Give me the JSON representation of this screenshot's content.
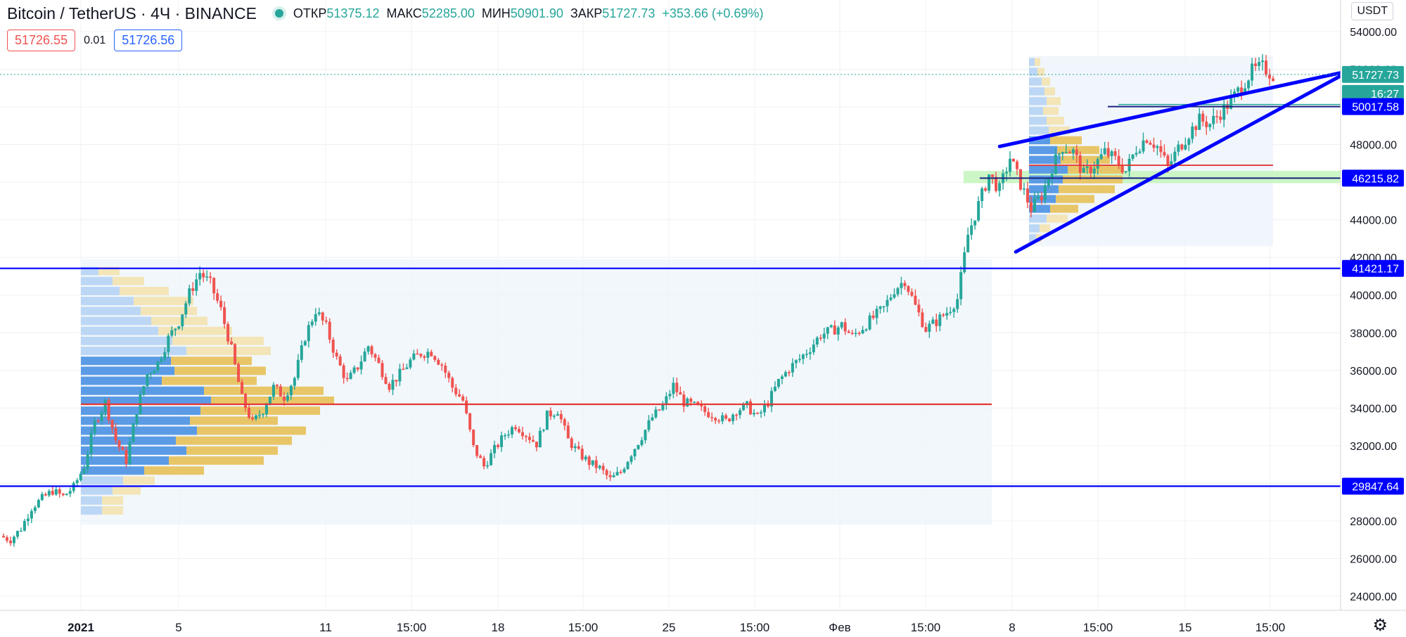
{
  "header": {
    "symbol": "Bitcoin / TetherUS · 4Ч · BINANCE",
    "ohlc": {
      "open_label": "ОТКР",
      "open": "51375.12",
      "high_label": "МАКС",
      "high": "52285.00",
      "low_label": "МИН",
      "low": "50901.90",
      "close_label": "ЗАКР",
      "close": "51727.73",
      "change": "+353.66 (+0.69%)"
    }
  },
  "trade": {
    "sell": "51726.55",
    "spread": "0.01",
    "buy": "51726.56"
  },
  "currency_button": "USDT",
  "settings_icon": "⚙",
  "colors": {
    "up": "#26a69a",
    "down": "#ef5350",
    "level": "#0000ff",
    "poc": "#e53935",
    "vol_up": "#5b9be6",
    "vol_down": "#e8c668"
  },
  "chart_data": {
    "type": "candlestick",
    "price_axis": {
      "min": 24000,
      "max": 54000,
      "ticks": [
        "24000.00",
        "26000.00",
        "28000.00",
        "30000.00",
        "32000.00",
        "34000.00",
        "36000.00",
        "38000.00",
        "40000.00",
        "42000.00",
        "44000.00",
        "46000.00",
        "48000.00",
        "50000.00",
        "52000.00",
        "54000.00"
      ]
    },
    "time_axis": {
      "labels": [
        "2021",
        "5",
        "11",
        "15:00",
        "18",
        "15:00",
        "25",
        "15:00",
        "Фев",
        "15:00",
        "8",
        "15:00",
        "15",
        "15:00"
      ]
    },
    "price_labels": [
      {
        "value": 51727.73,
        "text": "51727.73",
        "kind": "last"
      },
      {
        "text": "16:27",
        "kind": "countdown"
      },
      {
        "value": 50017.58,
        "text": "50017.58",
        "kind": "level"
      },
      {
        "value": 46215.82,
        "text": "46215.82",
        "kind": "level"
      },
      {
        "value": 41421.17,
        "text": "41421.17",
        "kind": "level"
      },
      {
        "value": 29847.64,
        "text": "29847.64",
        "kind": "level"
      }
    ],
    "horizontal_levels": [
      41421.17,
      29847.64
    ],
    "poc_levels": [
      34200,
      46900
    ],
    "close_path": [
      [
        0,
        27200
      ],
      [
        3,
        27000
      ],
      [
        6,
        27600
      ],
      [
        9,
        28700
      ],
      [
        12,
        29200
      ],
      [
        15,
        29600
      ],
      [
        18,
        29300
      ],
      [
        21,
        29800
      ],
      [
        24,
        30900
      ],
      [
        27,
        33200
      ],
      [
        30,
        34300
      ],
      [
        33,
        32300
      ],
      [
        36,
        31200
      ],
      [
        39,
        33900
      ],
      [
        42,
        35800
      ],
      [
        45,
        36400
      ],
      [
        48,
        37700
      ],
      [
        51,
        38600
      ],
      [
        54,
        40100
      ],
      [
        57,
        41200
      ],
      [
        60,
        40600
      ],
      [
        63,
        39200
      ],
      [
        66,
        37100
      ],
      [
        69,
        34500
      ],
      [
        72,
        33200
      ],
      [
        75,
        33900
      ],
      [
        78,
        35100
      ],
      [
        81,
        34600
      ],
      [
        84,
        35600
      ],
      [
        87,
        37800
      ],
      [
        90,
        39200
      ],
      [
        93,
        38300
      ],
      [
        96,
        36600
      ],
      [
        99,
        35400
      ],
      [
        102,
        36200
      ],
      [
        105,
        37300
      ],
      [
        108,
        36300
      ],
      [
        111,
        35200
      ],
      [
        114,
        35800
      ],
      [
        117,
        36500
      ],
      [
        120,
        36900
      ],
      [
        123,
        37000
      ],
      [
        126,
        36300
      ],
      [
        129,
        35100
      ],
      [
        132,
        34400
      ],
      [
        135,
        31900
      ],
      [
        138,
        30900
      ],
      [
        141,
        31800
      ],
      [
        144,
        32600
      ],
      [
        147,
        33100
      ],
      [
        150,
        32600
      ],
      [
        153,
        32100
      ],
      [
        156,
        33600
      ],
      [
        159,
        33900
      ],
      [
        162,
        32300
      ],
      [
        165,
        31600
      ],
      [
        168,
        31100
      ],
      [
        171,
        30800
      ],
      [
        174,
        30200
      ],
      [
        177,
        30600
      ],
      [
        180,
        31600
      ],
      [
        183,
        32500
      ],
      [
        186,
        33500
      ],
      [
        189,
        34100
      ],
      [
        192,
        35200
      ],
      [
        195,
        34300
      ],
      [
        198,
        34100
      ],
      [
        201,
        33800
      ],
      [
        204,
        33600
      ],
      [
        207,
        33300
      ],
      [
        210,
        33900
      ],
      [
        213,
        34100
      ],
      [
        216,
        33500
      ],
      [
        219,
        34300
      ],
      [
        222,
        35400
      ],
      [
        225,
        36100
      ],
      [
        228,
        36600
      ],
      [
        231,
        37200
      ],
      [
        234,
        37900
      ],
      [
        237,
        38100
      ],
      [
        240,
        38400
      ],
      [
        243,
        37800
      ],
      [
        246,
        38300
      ],
      [
        249,
        38800
      ],
      [
        252,
        39300
      ],
      [
        255,
        40300
      ],
      [
        258,
        40800
      ],
      [
        261,
        39400
      ],
      [
        264,
        38200
      ],
      [
        267,
        38600
      ],
      [
        270,
        39100
      ],
      [
        273,
        39800
      ],
      [
        276,
        43200
      ],
      [
        279,
        44800
      ],
      [
        282,
        46400
      ],
      [
        285,
        45600
      ],
      [
        288,
        47300
      ],
      [
        291,
        45900
      ],
      [
        294,
        44600
      ],
      [
        297,
        45300
      ],
      [
        300,
        46800
      ],
      [
        303,
        47900
      ],
      [
        306,
        47600
      ],
      [
        309,
        46400
      ],
      [
        312,
        46900
      ],
      [
        315,
        47600
      ],
      [
        318,
        47200
      ],
      [
        321,
        46600
      ],
      [
        324,
        47800
      ],
      [
        327,
        48400
      ],
      [
        330,
        47900
      ],
      [
        333,
        46800
      ],
      [
        336,
        47800
      ],
      [
        339,
        48600
      ],
      [
        342,
        49300
      ],
      [
        345,
        49100
      ],
      [
        348,
        49700
      ],
      [
        351,
        50300
      ],
      [
        354,
        51100
      ],
      [
        357,
        51900
      ],
      [
        360,
        52100
      ],
      [
        363,
        51700
      ]
    ],
    "wedge_upper": [
      [
        273,
        47900
      ],
      [
        366,
        51700
      ]
    ],
    "wedge_lower": [
      [
        274,
        42300
      ],
      [
        366,
        50900
      ]
    ]
  }
}
